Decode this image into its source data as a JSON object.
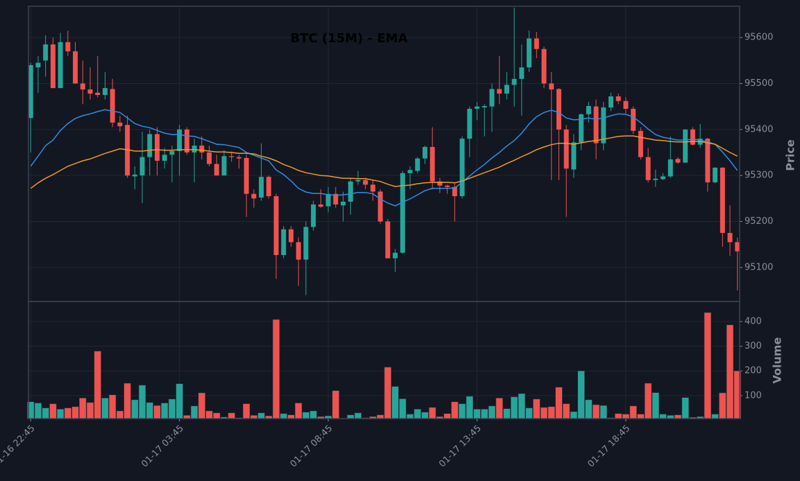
{
  "chart_data": {
    "type": "candlestick",
    "title": "BTC (15M) - EMA",
    "ylabel": "Price",
    "vlabel": "Volume",
    "up_color": "#26a69a",
    "down_color": "#ef5350",
    "grid": true,
    "xlim": [
      -0.3,
      95.3
    ],
    "xticks": [
      {
        "value": 0,
        "label": "01-16 22:45"
      },
      {
        "value": 20,
        "label": "01-17 03:45"
      },
      {
        "value": 40,
        "label": "01-17 08:45"
      },
      {
        "value": 60,
        "label": "01-17 13:45"
      },
      {
        "value": 80,
        "label": "01-17 18:45"
      }
    ],
    "ylim": [
      95026,
      95668
    ],
    "yticks": [
      95100,
      95200,
      95300,
      95400,
      95500,
      95600
    ],
    "vlim": [
      7,
      481
    ],
    "vticks": [
      100,
      200,
      300,
      400
    ],
    "open": [
      95425,
      95535,
      95550,
      95585,
      95490,
      95590,
      95570,
      95500,
      95487,
      95480,
      95475,
      95488,
      95415,
      95410,
      95298,
      95300,
      95340,
      95390,
      95332,
      95345,
      95353,
      95400,
      95350,
      95365,
      95350,
      95325,
      95300,
      95342,
      95340,
      95338,
      95260,
      95252,
      95297,
      95255,
      95127,
      95183,
      95155,
      95117,
      95188,
      95237,
      95233,
      95260,
      95235,
      95243,
      95287,
      95290,
      95280,
      95265,
      95200,
      95120,
      95132,
      95305,
      95310,
      95337,
      95362,
      95287,
      95278,
      95275,
      95255,
      95380,
      95445,
      95448,
      95450,
      95488,
      95478,
      95497,
      95510,
      95535,
      95598,
      95575,
      95500,
      95488,
      95400,
      95313,
      95372,
      95433,
      95450,
      95370,
      95448,
      95472,
      95462,
      95445,
      95397,
      95340,
      95290,
      95292,
      95298,
      95336,
      95328,
      95400,
      95367,
      95380,
      95285,
      95317,
      95175,
      95155
    ],
    "high": [
      95545,
      95560,
      95605,
      95600,
      95610,
      95615,
      95590,
      95550,
      95535,
      95560,
      95525,
      95510,
      95430,
      95430,
      95320,
      95395,
      95400,
      95405,
      95360,
      95365,
      95410,
      95405,
      95380,
      95385,
      95365,
      95345,
      95355,
      95352,
      95345,
      95345,
      95270,
      95370,
      95300,
      95260,
      95190,
      95190,
      95165,
      95200,
      95245,
      95270,
      95275,
      95275,
      95265,
      95295,
      95310,
      95295,
      95290,
      95270,
      95205,
      95140,
      95310,
      95320,
      95340,
      95365,
      95405,
      95295,
      95280,
      95285,
      95385,
      95450,
      95460,
      95455,
      95500,
      95560,
      95525,
      95665,
      95585,
      95615,
      95612,
      95580,
      95525,
      95490,
      95410,
      95390,
      95435,
      95460,
      95465,
      95460,
      95480,
      95478,
      95470,
      95450,
      95405,
      95360,
      95313,
      95305,
      95385,
      95340,
      95400,
      95405,
      95412,
      95382,
      95318,
      95318,
      95235,
      95165
    ],
    "low": [
      95350,
      95480,
      95515,
      95490,
      95490,
      95560,
      95500,
      95455,
      95465,
      95470,
      95465,
      95405,
      95395,
      95295,
      95270,
      95240,
      95300,
      95300,
      95315,
      95285,
      95300,
      95345,
      95285,
      95335,
      95320,
      95300,
      95300,
      95330,
      95315,
      95210,
      95230,
      95245,
      95250,
      95075,
      95120,
      95145,
      95060,
      95040,
      95180,
      95230,
      95220,
      95230,
      95200,
      95215,
      95280,
      95270,
      95245,
      95195,
      95120,
      95090,
      95130,
      95270,
      95305,
      95325,
      95270,
      95262,
      95260,
      95200,
      95250,
      95340,
      95420,
      95385,
      95395,
      95455,
      95465,
      95450,
      95430,
      95525,
      95555,
      95490,
      95290,
      95290,
      95210,
      95295,
      95355,
      95415,
      95335,
      95355,
      95440,
      95455,
      95435,
      95390,
      95335,
      95285,
      95275,
      95290,
      95295,
      95325,
      95327,
      95365,
      95360,
      95265,
      95283,
      95145,
      95125,
      95050
    ],
    "close": [
      95540,
      95545,
      95585,
      95490,
      95590,
      95570,
      95500,
      95487,
      95478,
      95475,
      95490,
      95415,
      95407,
      95300,
      95302,
      95340,
      95390,
      95332,
      95345,
      95353,
      95400,
      95350,
      95365,
      95350,
      95325,
      95300,
      95342,
      95340,
      95337,
      95260,
      95250,
      95297,
      95255,
      95127,
      95183,
      95155,
      95117,
      95188,
      95237,
      95232,
      95260,
      95237,
      95243,
      95287,
      95290,
      95280,
      95265,
      95200,
      95120,
      95132,
      95305,
      95312,
      95337,
      95362,
      95287,
      95278,
      95275,
      95255,
      95380,
      95445,
      95450,
      95451,
      95488,
      95478,
      95497,
      95510,
      95535,
      95598,
      95575,
      95500,
      95487,
      95400,
      95315,
      95372,
      95433,
      95451,
      95370,
      95448,
      95472,
      95462,
      95445,
      95397,
      95340,
      95290,
      95293,
      95298,
      95335,
      95328,
      95400,
      95367,
      95380,
      95285,
      95317,
      95175,
      95155,
      95135
    ],
    "volume": [
      75,
      70,
      50,
      67,
      45,
      50,
      55,
      90,
      72,
      280,
      90,
      103,
      38,
      150,
      83,
      142,
      72,
      60,
      70,
      86,
      148,
      20,
      58,
      111,
      38,
      30,
      13,
      30,
      10,
      67,
      20,
      30,
      18,
      408,
      27,
      22,
      70,
      33,
      38,
      15,
      18,
      120,
      8,
      22,
      30,
      10,
      15,
      22,
      215,
      137,
      87,
      25,
      45,
      33,
      52,
      15,
      27,
      75,
      67,
      97,
      45,
      45,
      58,
      90,
      47,
      95,
      108,
      50,
      86,
      52,
      55,
      134,
      67,
      35,
      200,
      83,
      63,
      60,
      10,
      27,
      25,
      58,
      25,
      150,
      112,
      25,
      20,
      22,
      92,
      12,
      15,
      436,
      25,
      111,
      386,
      200
    ],
    "lines": [
      {
        "color": "#2f8fe6",
        "values": [
          95320,
          95342,
          95365,
          95377,
          95398,
          95413,
          95424,
          95430,
          95434,
          95439,
          95443,
          95440,
          95437,
          95425,
          95413,
          95407,
          95404,
          95398,
          95392,
          95389,
          95389,
          95386,
          95385,
          95380,
          95374,
          95368,
          95367,
          95364,
          95361,
          95350,
          95344,
          95338,
          95332,
          95312,
          95302,
          95288,
          95272,
          95264,
          95261,
          95261,
          95258,
          95257,
          95258,
          95260,
          95263,
          95263,
          95260,
          95249,
          95240,
          95234,
          95242,
          95249,
          95258,
          95267,
          95272,
          95272,
          95272,
          95273,
          95285,
          95299,
          95312,
          95324,
          95338,
          95350,
          95364,
          95376,
          95392,
          95412,
          95428,
          95437,
          95442,
          95437,
          95425,
          95421,
          95422,
          95425,
          95422,
          95425,
          95430,
          95434,
          95433,
          95427,
          95415,
          95401,
          95389,
          95383,
          95380,
          95377,
          95377,
          95379,
          95377,
          95373,
          95368,
          95351,
          95332,
          95311
        ]
      },
      {
        "color": "#f39c1b",
        "values": [
          95272,
          95284,
          95294,
          95302,
          95311,
          95320,
          95326,
          95332,
          95336,
          95342,
          95348,
          95353,
          95358,
          95356,
          95353,
          95353,
          95355,
          95356,
          95355,
          95355,
          95356,
          95356,
          95356,
          95355,
          95353,
          95351,
          95351,
          95350,
          95348,
          95348,
          95347,
          95342,
          95338,
          95332,
          95324,
          95318,
          95311,
          95306,
          95303,
          95300,
          95299,
          95296,
          95294,
          95294,
          95293,
          95293,
          95290,
          95287,
          95281,
          95276,
          95278,
          95279,
          95282,
          95284,
          95285,
          95285,
          95285,
          95284,
          95288,
          95294,
          95300,
          95306,
          95312,
          95318,
          95326,
          95333,
          95341,
          95348,
          95356,
          95362,
          95367,
          95370,
          95370,
          95368,
          95371,
          95374,
          95376,
          95379,
          95382,
          95385,
          95386,
          95386,
          95383,
          95380,
          95377,
          95376,
          95374,
          95373,
          95373,
          95374,
          95374,
          95371,
          95368,
          95359,
          95350,
          95342
        ]
      }
    ]
  }
}
